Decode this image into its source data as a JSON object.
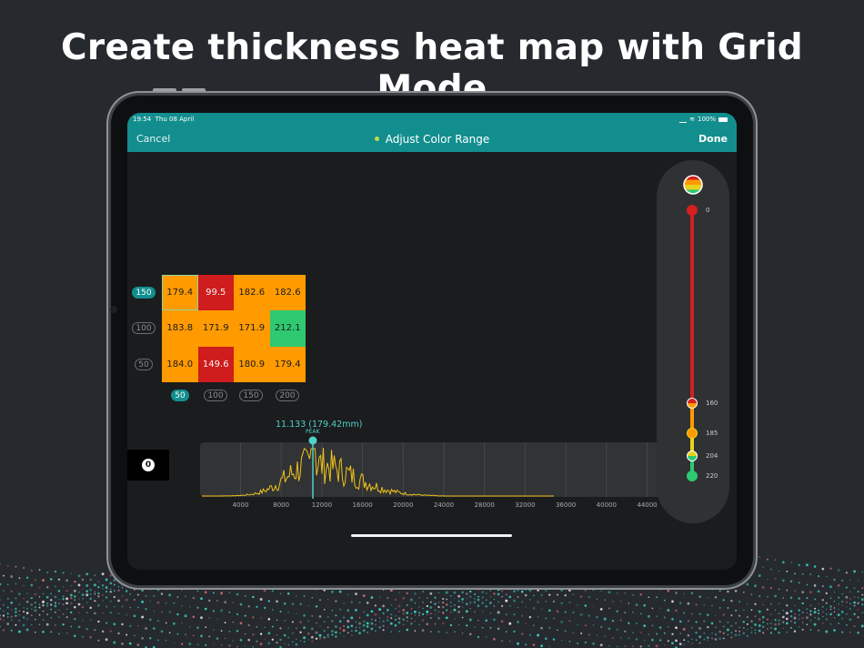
{
  "headline": "Create thickness heat map with Grid Mode",
  "status": {
    "time": "19:54",
    "date": "Thu 08 April",
    "battery": "100%"
  },
  "nav": {
    "cancel": "Cancel",
    "title": "Adjust Color Range",
    "done": "Done"
  },
  "grid": {
    "y_labels": [
      "150",
      "100",
      "50"
    ],
    "x_labels": [
      "50",
      "100",
      "150",
      "200"
    ],
    "active_y": "150",
    "active_x": "50",
    "rows": [
      [
        "179.4",
        "99.5",
        "182.6",
        "182.6"
      ],
      [
        "183.8",
        "171.9",
        "171.9",
        "212.1"
      ],
      [
        "184.0",
        "149.6",
        "180.9",
        "179.4"
      ]
    ],
    "colors": {
      "orange": "#ff9a00",
      "red": "#cf1c1c",
      "green": "#2ec971"
    }
  },
  "zero_badge": "0",
  "histogram": {
    "peak_value": "11.133 (179.42mm)",
    "peak_tag": "PEAK",
    "x_ticks": [
      "4000",
      "8000",
      "12000",
      "16000",
      "20000",
      "24000",
      "28000",
      "32000",
      "36000",
      "40000",
      "44000"
    ],
    "line_color": "#f0c21a",
    "peak_color": "#4fd1c9"
  },
  "range": {
    "ticks": [
      "0",
      "160",
      "185",
      "204",
      "220"
    ],
    "colors": {
      "red": "#d42020",
      "orange": "#ff9a00",
      "yellow": "#e8d21e",
      "green": "#2ec971"
    }
  }
}
